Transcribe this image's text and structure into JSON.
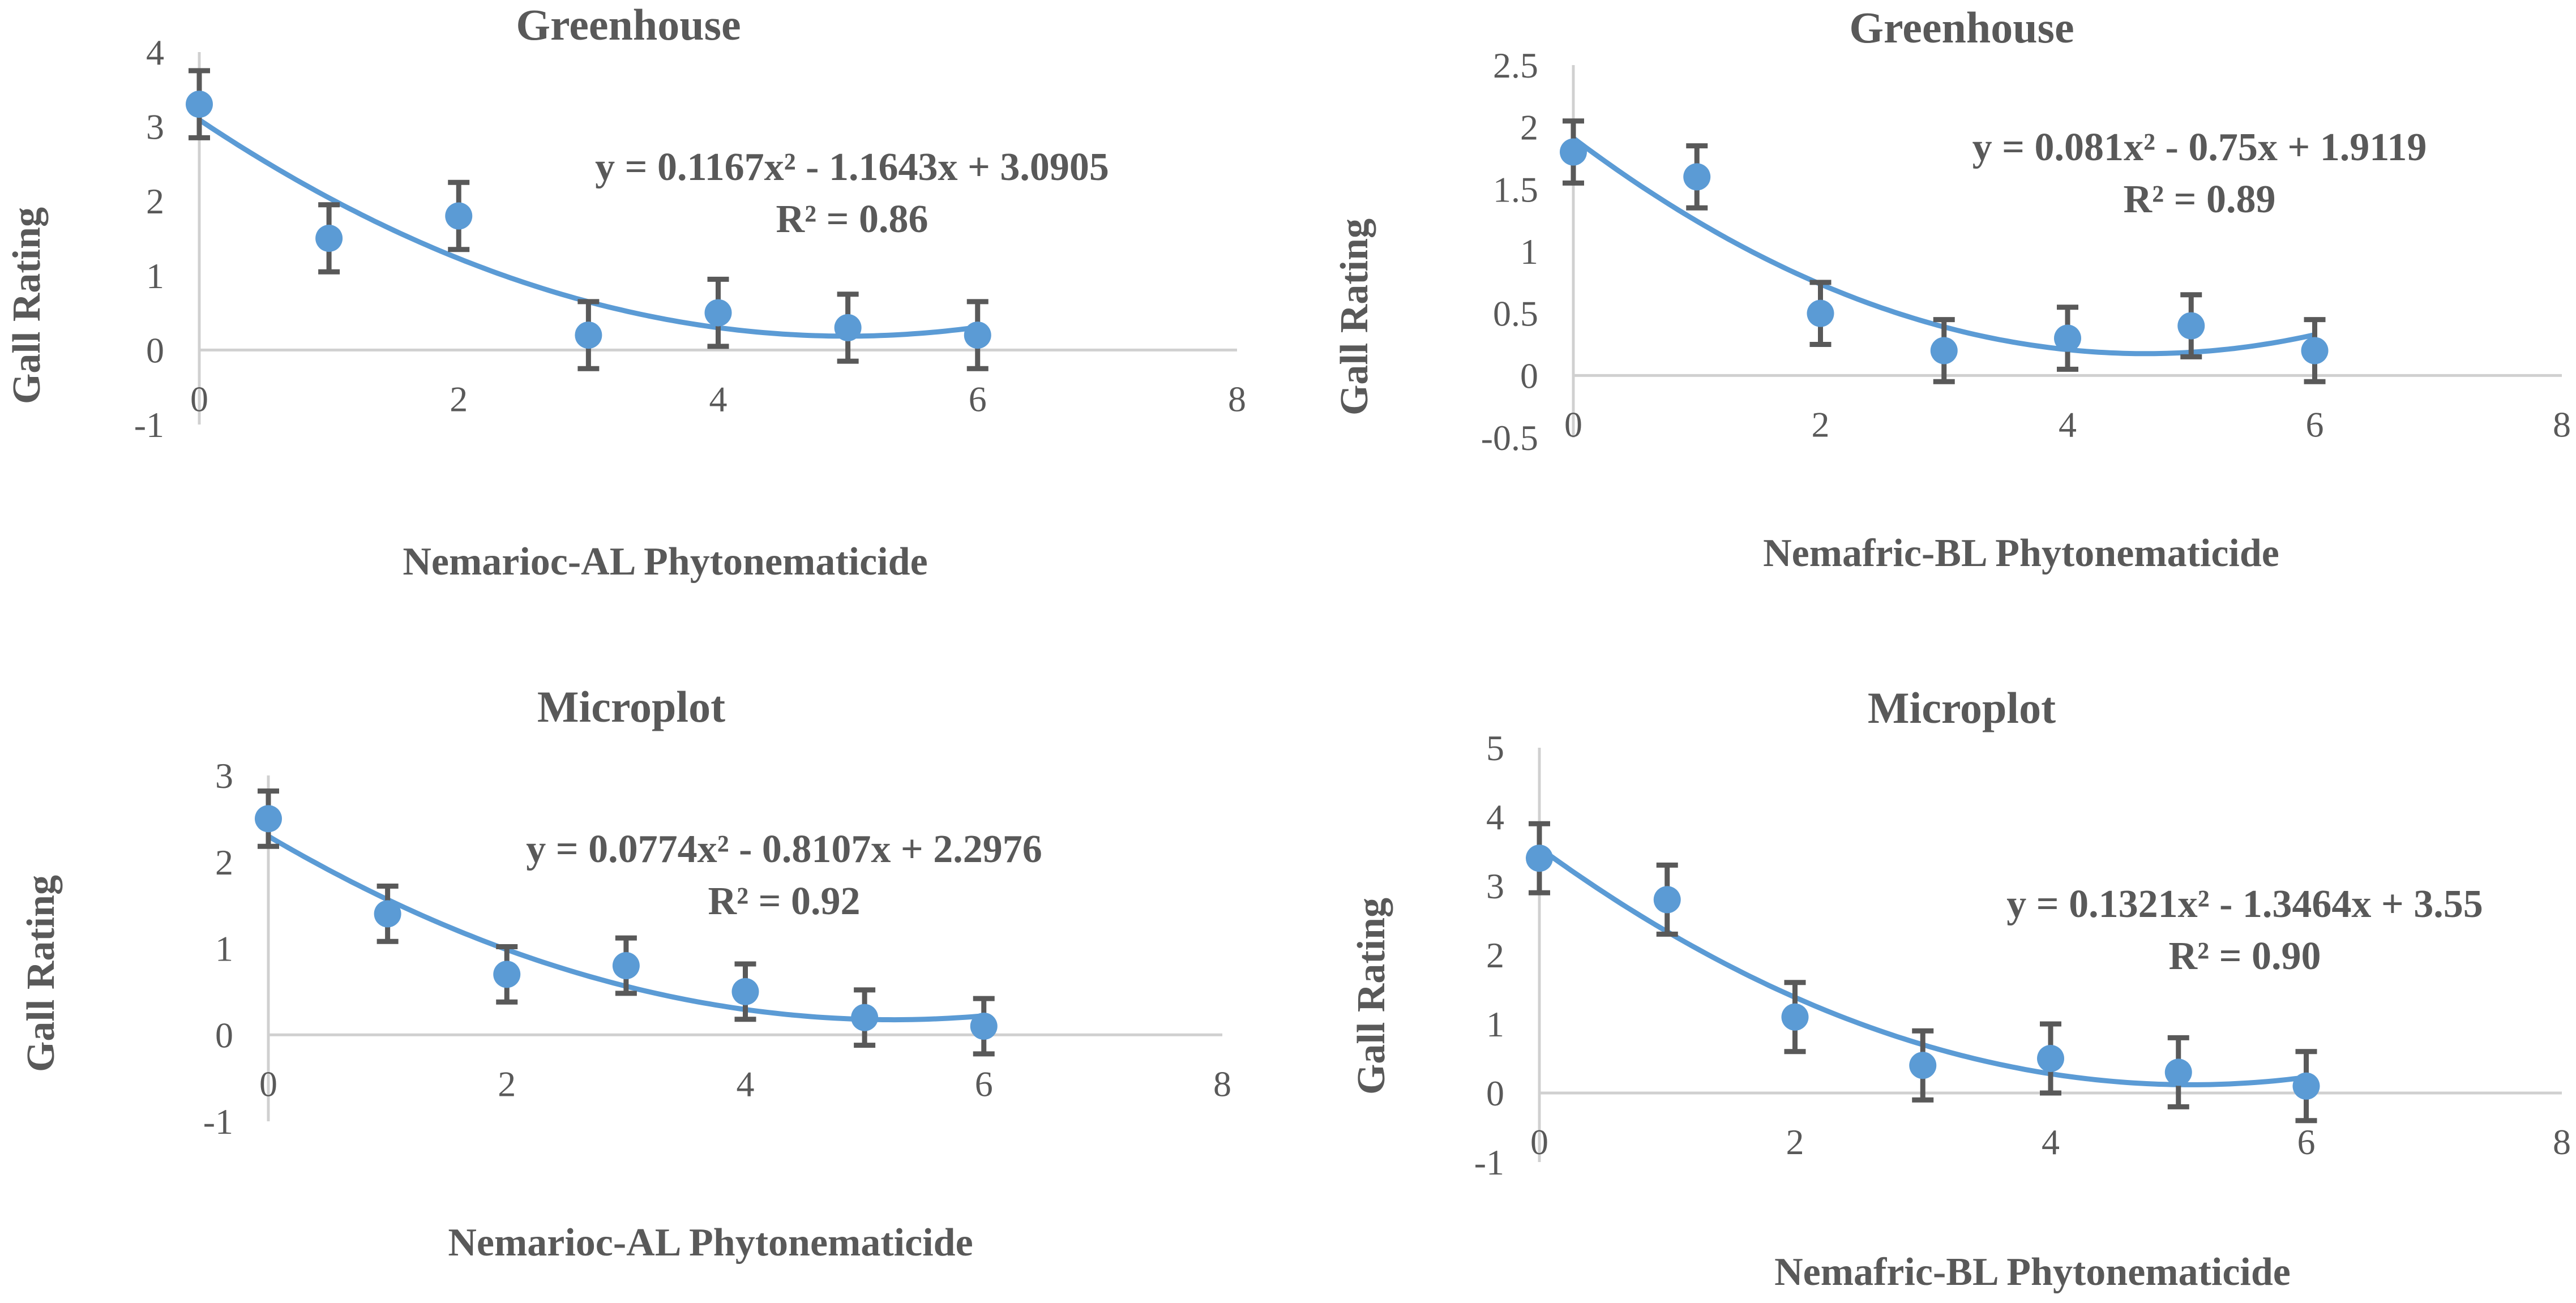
{
  "colors": {
    "series": "#5b9bd5",
    "error": "#595959",
    "text": "#595959"
  },
  "chart_data": [
    {
      "type": "scatter",
      "title": "Greenhouse",
      "xlabel": "Nemarioc-AL Phytonematicide",
      "ylabel": "Gall Rating",
      "xlim": [
        0,
        8
      ],
      "ylim": [
        -1,
        4
      ],
      "xticks": [
        "0",
        "2",
        "4",
        "6",
        "8"
      ],
      "yticks": [
        "-1",
        "0",
        "1",
        "2",
        "3",
        "4"
      ],
      "x": [
        0,
        1,
        2,
        3,
        4,
        5,
        6
      ],
      "y": [
        3.3,
        1.5,
        1.8,
        0.2,
        0.5,
        0.3,
        0.2
      ],
      "error": [
        0.45,
        0.45,
        0.45,
        0.45,
        0.45,
        0.45,
        0.45
      ],
      "fit": {
        "a": 0.1167,
        "b": -1.1643,
        "c": 3.0905
      },
      "equation": "y = 0.1167x² - 1.1643x + 3.0905",
      "r2": "R² = 0.86"
    },
    {
      "type": "scatter",
      "title": "Greenhouse",
      "xlabel": "Nemafric-BL Phytonematicide",
      "ylabel": "Gall Rating",
      "xlim": [
        0,
        8
      ],
      "ylim": [
        -0.5,
        2.5
      ],
      "xticks": [
        "0",
        "2",
        "4",
        "6",
        "8"
      ],
      "yticks": [
        "-0.5",
        "0",
        "0.5",
        "1",
        "1.5",
        "2",
        "2.5"
      ],
      "x": [
        0,
        1,
        2,
        3,
        4,
        5,
        6
      ],
      "y": [
        1.8,
        1.6,
        0.5,
        0.2,
        0.3,
        0.4,
        0.2
      ],
      "error": [
        0.25,
        0.25,
        0.25,
        0.25,
        0.25,
        0.25,
        0.25
      ],
      "fit": {
        "a": 0.081,
        "b": -0.75,
        "c": 1.9119
      },
      "equation": "y = 0.081x² - 0.75x + 1.9119",
      "r2": "R² = 0.89"
    },
    {
      "type": "scatter",
      "title": "Microplot",
      "xlabel": "Nemarioc-AL Phytonematicide",
      "ylabel": "Gall Rating",
      "xlim": [
        0,
        8
      ],
      "ylim": [
        -1,
        3
      ],
      "xticks": [
        "0",
        "2",
        "4",
        "6",
        "8"
      ],
      "yticks": [
        "-1",
        "0",
        "1",
        "2",
        "3"
      ],
      "x": [
        0,
        1,
        2,
        3,
        4,
        5,
        6
      ],
      "y": [
        2.5,
        1.4,
        0.7,
        0.8,
        0.5,
        0.2,
        0.1
      ],
      "error": [
        0.32,
        0.32,
        0.32,
        0.32,
        0.32,
        0.32,
        0.32
      ],
      "fit": {
        "a": 0.0774,
        "b": -0.8107,
        "c": 2.2976
      },
      "equation": "y = 0.0774x² - 0.8107x + 2.2976",
      "r2": "R² = 0.92"
    },
    {
      "type": "scatter",
      "title": "Microplot",
      "xlabel": "Nemafric-BL Phytonematicide",
      "ylabel": "Gall Rating",
      "xlim": [
        0,
        8
      ],
      "ylim": [
        -1,
        5
      ],
      "xticks": [
        "0",
        "2",
        "4",
        "6",
        "8"
      ],
      "yticks": [
        "-1",
        "0",
        "1",
        "2",
        "3",
        "4",
        "5"
      ],
      "x": [
        0,
        1,
        2,
        3,
        4,
        5,
        6
      ],
      "y": [
        3.4,
        2.8,
        1.1,
        0.4,
        0.5,
        0.3,
        0.1
      ],
      "error": [
        0.5,
        0.5,
        0.5,
        0.5,
        0.5,
        0.5,
        0.5
      ],
      "fit": {
        "a": 0.1321,
        "b": -1.3464,
        "c": 3.55
      },
      "equation": "y = 0.1321x² - 1.3464x + 3.55",
      "r2": "R² = 0.90"
    }
  ]
}
